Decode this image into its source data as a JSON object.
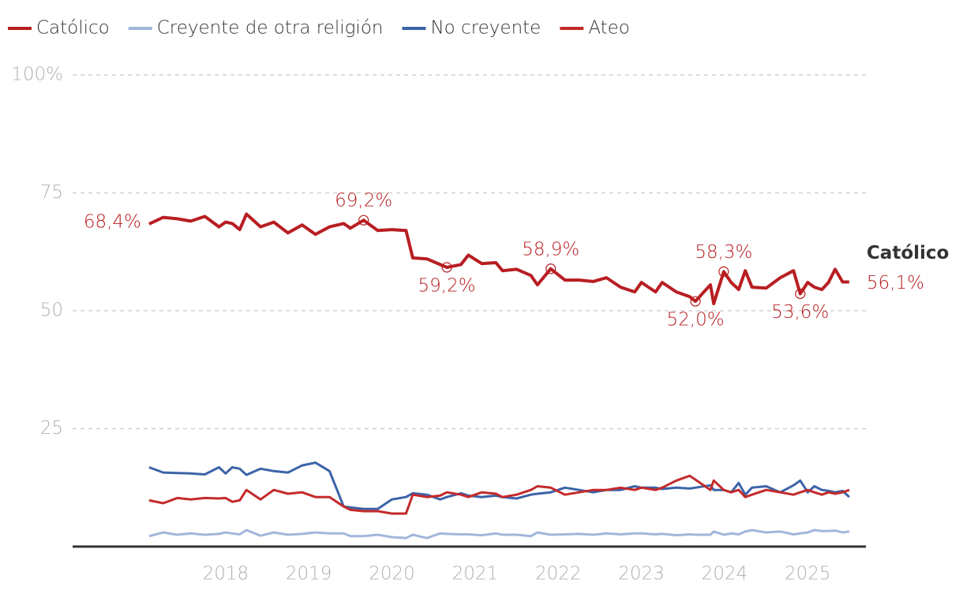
{
  "chart_data": {
    "type": "line",
    "x": [
      2017.08,
      2017.25,
      2017.42,
      2017.58,
      2017.75,
      2017.92,
      2018.0,
      2018.08,
      2018.17,
      2018.25,
      2018.42,
      2018.58,
      2018.75,
      2018.92,
      2019.08,
      2019.25,
      2019.42,
      2019.5,
      2019.66,
      2019.83,
      2020.0,
      2020.17,
      2020.25,
      2020.42,
      2020.58,
      2020.66,
      2020.83,
      2020.92,
      2021.08,
      2021.25,
      2021.33,
      2021.5,
      2021.67,
      2021.75,
      2021.91,
      2022.08,
      2022.25,
      2022.42,
      2022.58,
      2022.75,
      2022.92,
      2023.0,
      2023.17,
      2023.25,
      2023.42,
      2023.58,
      2023.65,
      2023.83,
      2023.87,
      2023.99,
      2024.08,
      2024.17,
      2024.25,
      2024.33,
      2024.5,
      2024.67,
      2024.83,
      2024.91,
      2025.0,
      2025.08,
      2025.17,
      2025.25,
      2025.33,
      2025.42,
      2025.5
    ],
    "series": [
      {
        "name": "Católico",
        "color": "#b81e22",
        "values": [
          68.4,
          69.8,
          69.5,
          69.0,
          70.0,
          67.8,
          68.8,
          68.5,
          67.2,
          70.5,
          67.8,
          68.8,
          66.5,
          68.2,
          66.2,
          67.8,
          68.5,
          67.5,
          69.2,
          67.0,
          67.2,
          67.0,
          61.2,
          61.0,
          59.8,
          59.2,
          59.8,
          61.8,
          60.0,
          60.2,
          58.5,
          58.8,
          57.5,
          55.5,
          58.9,
          56.5,
          56.5,
          56.2,
          57.0,
          55.0,
          54.0,
          56.0,
          54.0,
          56.0,
          54.0,
          53.0,
          52.0,
          55.5,
          51.5,
          58.3,
          56.0,
          54.5,
          58.5,
          55.0,
          54.8,
          57.0,
          58.5,
          53.6,
          56.0,
          55.0,
          54.5,
          56.0,
          58.8,
          56.1,
          56.1
        ],
        "value_labels": [
          "68,4%",
          null,
          null,
          null,
          null,
          null,
          null,
          null,
          null,
          null,
          null,
          null,
          null,
          null,
          null,
          null,
          null,
          null,
          "69,2%",
          null,
          null,
          null,
          null,
          null,
          null,
          "59,2%",
          null,
          null,
          null,
          null,
          null,
          null,
          null,
          null,
          "58,9%",
          null,
          null,
          null,
          null,
          null,
          null,
          null,
          null,
          null,
          null,
          null,
          "52,0%",
          null,
          null,
          "58,3%",
          null,
          null,
          null,
          null,
          null,
          null,
          null,
          "53,6%",
          null,
          null,
          null,
          null,
          null,
          null,
          "56,1%"
        ]
      },
      {
        "name": "Creyente de otra religión",
        "color": "#a2b6db",
        "values": [
          2.2,
          3.0,
          2.5,
          2.8,
          2.5,
          2.7,
          3.0,
          2.8,
          2.6,
          3.5,
          2.3,
          3.0,
          2.5,
          2.7,
          3.0,
          2.8,
          2.8,
          2.2,
          2.2,
          2.5,
          2.0,
          1.8,
          2.5,
          1.8,
          2.8,
          2.7,
          2.6,
          2.6,
          2.4,
          2.8,
          2.5,
          2.5,
          2.2,
          3.0,
          2.5,
          2.6,
          2.7,
          2.5,
          2.8,
          2.6,
          2.8,
          2.8,
          2.6,
          2.7,
          2.4,
          2.6,
          2.5,
          2.5,
          3.2,
          2.5,
          2.8,
          2.6,
          3.2,
          3.5,
          3.0,
          3.2,
          2.6,
          2.8,
          3.0,
          3.5,
          3.3,
          3.3,
          3.4,
          3.0,
          3.2
        ]
      },
      {
        "name": "No creyente",
        "color": "#3c63a8",
        "values": [
          16.8,
          15.7,
          15.6,
          15.5,
          15.3,
          16.8,
          15.5,
          16.8,
          16.5,
          15.2,
          16.5,
          16.0,
          15.7,
          17.2,
          17.8,
          16.0,
          8.5,
          8.3,
          8.0,
          8.0,
          10.0,
          10.5,
          11.3,
          11.0,
          10.0,
          10.5,
          11.3,
          10.8,
          10.5,
          10.8,
          10.5,
          10.2,
          11.0,
          11.2,
          11.5,
          12.5,
          12.0,
          11.5,
          12.0,
          12.0,
          12.8,
          12.5,
          12.5,
          12.2,
          12.5,
          12.3,
          12.5,
          13.0,
          12.0,
          12.0,
          11.5,
          13.5,
          11.0,
          12.5,
          12.8,
          11.5,
          13.0,
          14.0,
          11.5,
          12.8,
          12.0,
          11.8,
          11.5,
          11.8,
          10.5
        ]
      },
      {
        "name": "Ateo",
        "color": "#c42a2a",
        "values": [
          9.8,
          9.2,
          10.3,
          10.0,
          10.3,
          10.2,
          10.3,
          9.5,
          9.8,
          12.0,
          10.0,
          12.0,
          11.2,
          11.5,
          10.5,
          10.5,
          8.5,
          7.8,
          7.5,
          7.5,
          7.0,
          7.0,
          11.0,
          10.5,
          10.8,
          11.5,
          11.0,
          10.5,
          11.5,
          11.2,
          10.5,
          11.0,
          12.0,
          12.8,
          12.5,
          11.0,
          11.5,
          12.0,
          12.0,
          12.5,
          12.0,
          12.5,
          12.0,
          12.5,
          14.0,
          15.0,
          14.2,
          12.0,
          14.0,
          12.0,
          11.5,
          12.0,
          10.5,
          11.0,
          12.0,
          11.5,
          11.0,
          11.5,
          12.0,
          11.5,
          11.0,
          11.5,
          11.2,
          11.5,
          12.0
        ]
      }
    ],
    "xlim": [
      2016.16,
      2025.7
    ],
    "xticks": [
      2018,
      2019,
      2020,
      2021,
      2022,
      2023,
      2024,
      2025
    ],
    "ylim": [
      0,
      100
    ],
    "yticks": [
      25,
      50,
      75,
      {
        "value": 100,
        "label": "100%"
      }
    ],
    "grid": true
  }
}
